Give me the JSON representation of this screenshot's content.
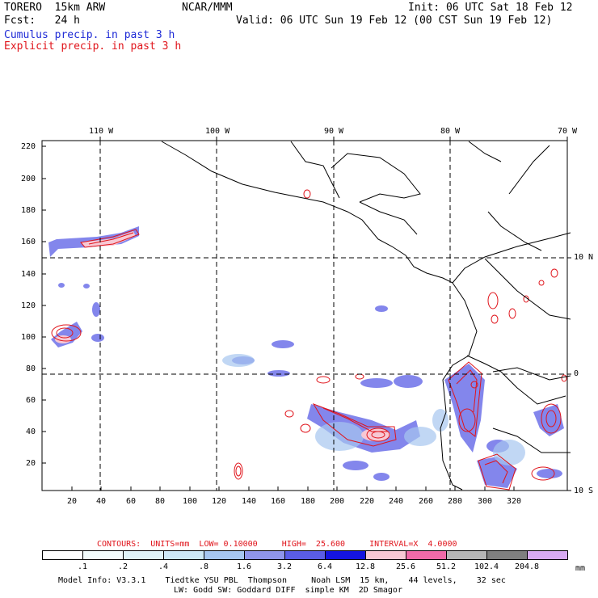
{
  "header": {
    "model": "TORERO  15km ARW",
    "center": "NCAR/MMM",
    "init": "Init: 06 UTC Sat 18 Feb 12",
    "fcst": "Fcst:   24 h",
    "valid": "Valid: 06 UTC Sun 19 Feb 12 (00 CST Sun 19 Feb 12)",
    "field1": "Cumulus precip. in past 3 h",
    "field2": "Explicit precip. in past 3 h"
  },
  "map": {
    "top_lon_labels": [
      "110 W",
      "100 W",
      "90 W",
      "80 W",
      "70 W"
    ],
    "right_lat_labels": [
      "10 N",
      "0",
      "10 S"
    ],
    "y_ticks": [
      "220",
      "200",
      "180",
      "160",
      "140",
      "120",
      "100",
      "80",
      "60",
      "40",
      "20"
    ],
    "x_ticks": [
      "20",
      "40",
      "60",
      "80",
      "100",
      "120",
      "140",
      "160",
      "180",
      "200",
      "220",
      "240",
      "260",
      "280",
      "300",
      "320"
    ]
  },
  "contours": {
    "label": "CONTOURS:  UNITS=mm  LOW= 0.10000     HIGH=  25.600     INTERVAL=X  4.0000"
  },
  "legend": {
    "labels": [
      ".1",
      ".2",
      ".4",
      ".8",
      "1.6",
      "3.2",
      "6.4",
      "12.8",
      "25.6",
      "51.2",
      "102.4",
      "204.8"
    ],
    "unit": "mm",
    "colors": [
      "#ffffff",
      "#f2fbfb",
      "#dff3f8",
      "#cde8f6",
      "#a6c6f0",
      "#8f95ea",
      "#5a5de6",
      "#1414e0",
      "#f7c8d4",
      "#f06aa8",
      "#b6b6b6",
      "#7f7f7f",
      "#d8aaf2"
    ]
  },
  "footer": {
    "line1": "Model Info: V3.3.1    Tiedtke YSU PBL  Thompson     Noah LSM  15 km,    44 levels,    32 sec",
    "line2": "LW: Godd SW: Goddard DIFF  simple KM  2D Smagor"
  }
}
